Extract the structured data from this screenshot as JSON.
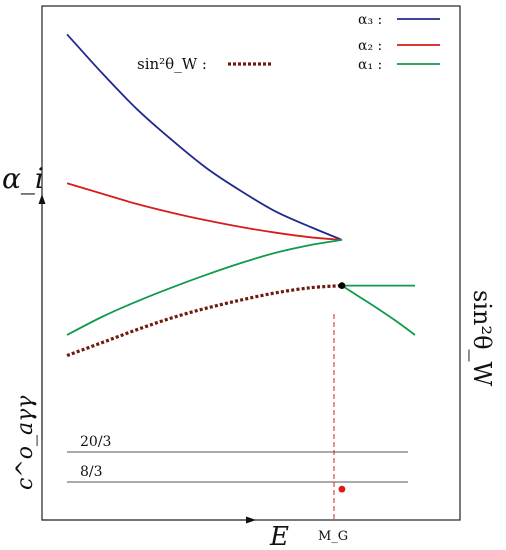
{
  "chart_data": {
    "type": "line",
    "title": "",
    "xlabel": "E",
    "ylabel_left": "α_i",
    "ylabel_right": "sin²θ_W",
    "ylabel_lower": "c^o_aγγ",
    "legend": {
      "placement": "top-right",
      "entries": [
        {
          "label": "α₃ :",
          "color": "#1f2a8c"
        },
        {
          "label": "α₂ :",
          "color": "#d81c1c"
        },
        {
          "label": "α₁ :",
          "color": "#0f9a4a"
        }
      ]
    },
    "weinberg_legend": {
      "label": "sin²θ_W :",
      "color": "#6e1a0e",
      "style": "dotted"
    },
    "marker": {
      "label": "M_G",
      "color": "#e01818"
    },
    "x_range": [
      0,
      1
    ],
    "y_range": [
      0,
      1
    ],
    "series": [
      {
        "name": "α₃",
        "color": "#1f2a8c",
        "x": [
          0,
          0.1,
          0.2,
          0.3,
          0.4,
          0.5,
          0.6,
          0.7,
          0.79
        ],
        "y": [
          0.945,
          0.87,
          0.8,
          0.74,
          0.685,
          0.64,
          0.6,
          0.57,
          0.545
        ]
      },
      {
        "name": "α₂",
        "color": "#d81c1c",
        "x": [
          0,
          0.1,
          0.2,
          0.3,
          0.4,
          0.5,
          0.6,
          0.7,
          0.79
        ],
        "y": [
          0.655,
          0.635,
          0.615,
          0.598,
          0.583,
          0.57,
          0.559,
          0.55,
          0.545
        ]
      },
      {
        "name": "α₁",
        "color": "#0f9a4a",
        "x": [
          0,
          0.1,
          0.2,
          0.3,
          0.4,
          0.5,
          0.6,
          0.7,
          0.79
        ],
        "y": [
          0.36,
          0.395,
          0.425,
          0.452,
          0.477,
          0.5,
          0.52,
          0.535,
          0.545
        ]
      },
      {
        "name": "α₁ (branch)",
        "color": "#0f9a4a",
        "x": [
          0.79,
          0.85,
          0.9,
          0.95,
          1.0
        ],
        "y": [
          0.456,
          0.43,
          0.408,
          0.385,
          0.36
        ]
      },
      {
        "name": "sin²θ_W",
        "color": "#6e1a0e",
        "style": "dotted",
        "x": [
          0,
          0.1,
          0.2,
          0.3,
          0.4,
          0.5,
          0.6,
          0.7,
          0.79
        ],
        "y": [
          0.32,
          0.345,
          0.37,
          0.393,
          0.412,
          0.428,
          0.442,
          0.452,
          0.456
        ]
      },
      {
        "name": "sin²θ_W (after)",
        "color": "#0f9a4a",
        "x": [
          0.79,
          1.0
        ],
        "y": [
          0.456,
          0.456
        ]
      }
    ],
    "hlines": [
      {
        "label": "20/3",
        "y": 0.138
      },
      {
        "label": "8/3",
        "y": 0.06
      }
    ],
    "points": [
      {
        "x": 0.79,
        "y": 0.456,
        "color": "#000000"
      },
      {
        "x": 0.79,
        "y": 0.06,
        "color": "#e01818"
      }
    ]
  }
}
